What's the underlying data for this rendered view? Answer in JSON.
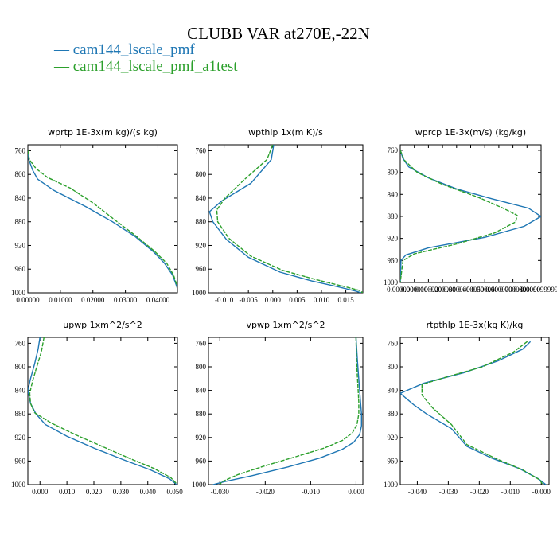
{
  "figure": {
    "title": "CLUBB VAR at270E,-22N",
    "legend": [
      {
        "label": "cam144_lscale_pmf",
        "color": "#1f77b4",
        "dash": false
      },
      {
        "label": "cam144_lscale_pmf_a1test",
        "color": "#2ca02c",
        "dash": true
      }
    ]
  },
  "chart_data": [
    {
      "type": "line",
      "title": "wprtp  1E-3x(m kg)/(s kg)",
      "xlim": [
        0.0,
        0.046
      ],
      "ylim": [
        750,
        1000
      ],
      "y_inverted": true,
      "xticks": [
        0.0,
        0.01,
        0.02,
        0.03,
        0.04
      ],
      "xtick_labels": [
        "0.00000",
        "0.01000",
        "0.02000",
        "0.03000",
        "0.04000"
      ],
      "yticks": [
        760,
        800,
        840,
        880,
        920,
        960,
        1000
      ],
      "series": [
        {
          "name": "cam144_lscale_pmf",
          "x": [
            0.0,
            0.0003,
            0.0015,
            0.003,
            0.008,
            0.018,
            0.026,
            0.033,
            0.0385,
            0.042,
            0.0445,
            0.0455,
            0.046,
            0.046
          ],
          "y": [
            760,
            775,
            793,
            808,
            827,
            855,
            880,
            905,
            930,
            950,
            970,
            985,
            993,
            1000
          ]
        },
        {
          "name": "cam144_lscale_pmf_a1test",
          "x": [
            0.0,
            0.0005,
            0.0025,
            0.006,
            0.013,
            0.02,
            0.027,
            0.0335,
            0.039,
            0.0427,
            0.0448,
            0.0457,
            0.046,
            0.046
          ],
          "y": [
            760,
            775,
            790,
            805,
            823,
            848,
            878,
            905,
            930,
            950,
            970,
            985,
            993,
            1000
          ]
        }
      ]
    },
    {
      "type": "line",
      "title": "wpthlp  1x(m K)/s",
      "xlim": [
        -0.0132,
        0.0185
      ],
      "ylim": [
        750,
        1000
      ],
      "y_inverted": true,
      "xticks": [
        -0.01,
        -0.005,
        0.0,
        0.005,
        0.01,
        0.015
      ],
      "xtick_labels": [
        "-0.010",
        "-0.005",
        "0.000",
        "0.005",
        "0.010",
        "0.015"
      ],
      "yticks": [
        760,
        800,
        840,
        880,
        920,
        960,
        1000
      ],
      "series": [
        {
          "name": "cam144_lscale_pmf",
          "x": [
            0.0002,
            -0.0003,
            -0.0045,
            -0.0105,
            -0.013,
            -0.0123,
            -0.0095,
            -0.005,
            0.0015,
            0.008,
            0.0135,
            0.017,
            0.0182
          ],
          "y": [
            750,
            775,
            815,
            845,
            863,
            880,
            910,
            940,
            965,
            980,
            990,
            997,
            1000
          ]
        },
        {
          "name": "cam144_lscale_pmf_a1test",
          "x": [
            0.0,
            -0.0012,
            -0.006,
            -0.0098,
            -0.0115,
            -0.0113,
            -0.009,
            -0.0045,
            0.002,
            0.009,
            0.0145,
            0.0178,
            0.0185
          ],
          "y": [
            750,
            775,
            810,
            840,
            860,
            880,
            908,
            938,
            962,
            978,
            989,
            996,
            1000
          ]
        }
      ]
    },
    {
      "type": "line",
      "title": "wprcp  1E-3x(m/s) (kg/kg)",
      "xlim": [
        0.0,
        9.99998e-05
      ],
      "ylim": [
        750,
        1000
      ],
      "y_inverted": true,
      "xticks": [
        0.0,
        1e-05,
        2e-05,
        3e-05,
        4e-05,
        5e-05,
        6e-05,
        7e-05,
        8e-05,
        9e-05,
        9.99998e-05
      ],
      "xtick_labels": [
        "0.000000",
        "0.000010",
        "0.000020",
        "0.000030",
        "0.000040",
        "0.000050",
        "0.000060",
        "0.000070",
        "0.000080",
        "0.000090",
        "0.0000999998"
      ],
      "yticks": [
        760,
        800,
        840,
        880,
        920,
        960,
        1000
      ],
      "series": [
        {
          "name": "cam144_lscale_pmf",
          "x": [
            0.0,
            2e-06,
            6e-06,
            2e-05,
            4e-05,
            6.5e-05,
            9.1e-05,
            9.99e-05,
            8.8e-05,
            6e-05,
            2e-05,
            4e-06,
            5e-07,
            0.0
          ],
          "y": [
            760,
            775,
            790,
            810,
            830,
            848,
            865,
            880,
            898,
            918,
            937,
            950,
            960,
            1000
          ]
        },
        {
          "name": "cam144_lscale_pmf_a1test",
          "x": [
            0.0,
            3e-06,
            1.2e-05,
            3e-05,
            5.5e-05,
            7.3e-05,
            8.3e-05,
            8.2e-05,
            6.7e-05,
            4e-05,
            1e-05,
            2e-06,
            0.0
          ],
          "y": [
            760,
            778,
            800,
            822,
            845,
            865,
            878,
            890,
            910,
            930,
            948,
            960,
            1000
          ]
        }
      ]
    },
    {
      "type": "line",
      "title": "upwp  1xm^2/s^2",
      "xlim": [
        -0.0045,
        0.051
      ],
      "ylim": [
        750,
        1000
      ],
      "y_inverted": true,
      "xticks": [
        0.0,
        0.01,
        0.02,
        0.03,
        0.04,
        0.05
      ],
      "xtick_labels": [
        "0.000",
        "0.010",
        "0.020",
        "0.030",
        "0.040",
        "0.050"
      ],
      "yticks": [
        760,
        800,
        840,
        880,
        920,
        960,
        1000
      ],
      "series": [
        {
          "name": "cam144_lscale_pmf",
          "x": [
            0.0,
            -0.0007,
            -0.002,
            -0.0035,
            -0.0045,
            -0.0035,
            -0.0015,
            0.002,
            0.01,
            0.02,
            0.031,
            0.041,
            0.048,
            0.0508
          ],
          "y": [
            750,
            770,
            795,
            820,
            840,
            862,
            880,
            898,
            918,
            938,
            958,
            975,
            990,
            1000
          ]
        },
        {
          "name": "cam144_lscale_pmf_a1test",
          "x": [
            0.0015,
            0.0005,
            -0.0012,
            -0.0028,
            -0.0038,
            -0.0035,
            -0.002,
            0.004,
            0.013,
            0.023,
            0.033,
            0.042,
            0.0485,
            0.051
          ],
          "y": [
            750,
            775,
            800,
            825,
            845,
            862,
            878,
            895,
            915,
            935,
            955,
            972,
            988,
            1000
          ]
        }
      ]
    },
    {
      "type": "line",
      "title": "vpwp  1xm^2/s^2",
      "xlim": [
        -0.0325,
        0.0015
      ],
      "ylim": [
        750,
        1000
      ],
      "y_inverted": true,
      "xticks": [
        -0.03,
        -0.02,
        -0.01,
        0.0
      ],
      "xtick_labels": [
        "-0.030",
        "-0.020",
        "-0.010",
        "0.000"
      ],
      "yticks": [
        760,
        800,
        840,
        880,
        920,
        960,
        1000
      ],
      "series": [
        {
          "name": "cam144_lscale_pmf",
          "x": [
            0.0,
            0.0003,
            0.0007,
            0.001,
            0.0012,
            0.0012,
            0.0008,
            -0.0005,
            -0.003,
            -0.008,
            -0.015,
            -0.023,
            -0.029,
            -0.0315
          ],
          "y": [
            750,
            790,
            830,
            860,
            880,
            900,
            915,
            928,
            940,
            955,
            970,
            985,
            995,
            1000
          ]
        },
        {
          "name": "cam144_lscale_pmf_a1test",
          "x": [
            0.0,
            0.0001,
            0.0004,
            0.0006,
            0.0006,
            0.0002,
            -0.0008,
            -0.003,
            -0.007,
            -0.013,
            -0.02,
            -0.026,
            -0.0295,
            -0.03
          ],
          "y": [
            750,
            790,
            830,
            860,
            880,
            898,
            912,
            925,
            938,
            952,
            968,
            983,
            995,
            1000
          ]
        }
      ]
    },
    {
      "type": "line",
      "title": "rtpthlp  1E-3x(kg K)/kg",
      "xlim": [
        -0.0455,
        0.0025
      ],
      "ylim": [
        750,
        1000
      ],
      "y_inverted": true,
      "xticks": [
        -0.04,
        -0.03,
        -0.02,
        -0.01,
        0.0
      ],
      "xtick_labels": [
        "-0.040",
        "-0.030",
        "-0.020",
        "-0.010",
        "-0.000"
      ],
      "yticks": [
        760,
        800,
        840,
        880,
        920,
        960,
        1000
      ],
      "series": [
        {
          "name": "cam144_lscale_pmf",
          "x": [
            -0.0035,
            -0.006,
            -0.014,
            -0.025,
            -0.038,
            -0.0455,
            -0.041,
            -0.037,
            -0.029,
            -0.024,
            -0.016,
            -0.007,
            -0.001,
            0.0015
          ],
          "y": [
            757,
            770,
            790,
            810,
            828,
            845,
            865,
            880,
            905,
            935,
            955,
            973,
            990,
            1000
          ]
        },
        {
          "name": "cam144_lscale_pmf_a1test",
          "x": [
            -0.0045,
            -0.009,
            -0.019,
            -0.031,
            -0.0385,
            -0.0385,
            -0.035,
            -0.029,
            -0.024,
            -0.015,
            -0.006,
            -0.0005,
            0.0005
          ],
          "y": [
            757,
            775,
            800,
            818,
            830,
            848,
            870,
            898,
            932,
            955,
            975,
            992,
            1000
          ]
        }
      ]
    }
  ]
}
